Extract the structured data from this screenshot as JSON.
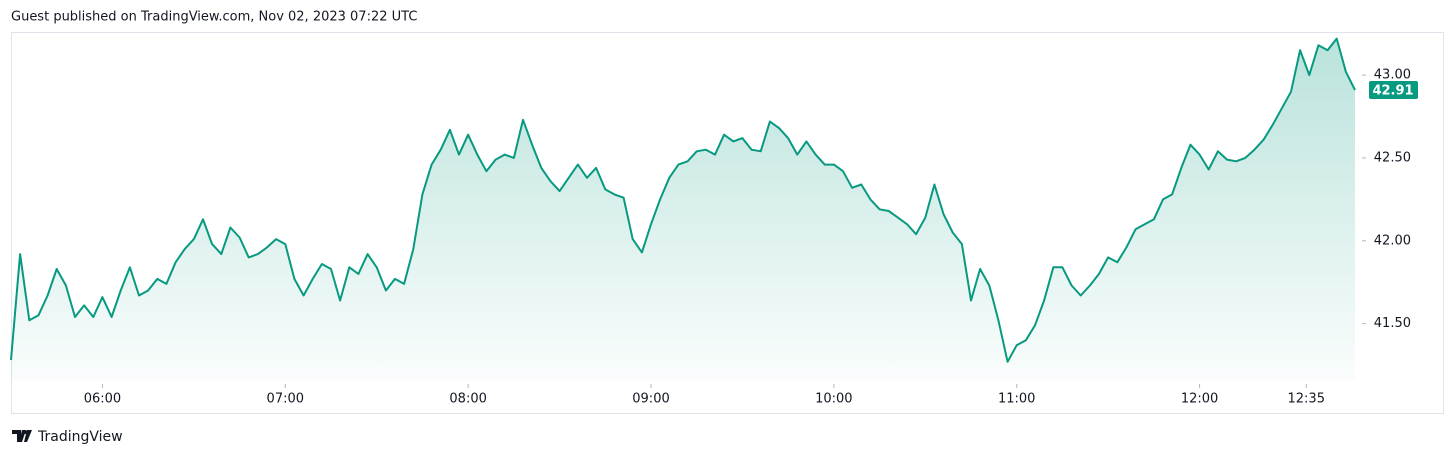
{
  "chart_data": {
    "type": "area",
    "source": "Guest published on TradingView.com, Nov 02, 2023 07:22 UTC",
    "brand": "TradingView",
    "color": "#089981",
    "x": [
      "05:30",
      "05:33",
      "05:36",
      "05:39",
      "05:42",
      "05:45",
      "05:48",
      "05:51",
      "05:54",
      "05:57",
      "06:00",
      "06:03",
      "06:06",
      "06:09",
      "06:12",
      "06:15",
      "06:18",
      "06:21",
      "06:24",
      "06:27",
      "06:30",
      "06:33",
      "06:36",
      "06:39",
      "06:42",
      "06:45",
      "06:48",
      "06:51",
      "06:54",
      "06:57",
      "07:00",
      "07:03",
      "07:06",
      "07:09",
      "07:12",
      "07:15",
      "07:18",
      "07:21",
      "07:24",
      "07:27",
      "07:30",
      "07:33",
      "07:36",
      "07:39",
      "07:42",
      "07:45",
      "07:48",
      "07:51",
      "07:54",
      "07:57",
      "08:00",
      "08:03",
      "08:06",
      "08:09",
      "08:12",
      "08:15",
      "08:18",
      "08:21",
      "08:24",
      "08:27",
      "08:30",
      "08:33",
      "08:36",
      "08:39",
      "08:42",
      "08:45",
      "08:48",
      "08:51",
      "08:54",
      "08:57",
      "09:00",
      "09:03",
      "09:06",
      "09:09",
      "09:12",
      "09:15",
      "09:18",
      "09:21",
      "09:24",
      "09:27",
      "09:30",
      "09:33",
      "09:36",
      "09:39",
      "09:42",
      "09:45",
      "09:48",
      "09:51",
      "09:54",
      "09:57",
      "10:00",
      "10:03",
      "10:06",
      "10:09",
      "10:12",
      "10:15",
      "10:18",
      "10:21",
      "10:24",
      "10:27",
      "10:30",
      "10:33",
      "10:36",
      "10:39",
      "10:42",
      "10:45",
      "10:48",
      "10:51",
      "10:54",
      "10:57",
      "11:00",
      "11:03",
      "11:06",
      "11:09",
      "11:12",
      "11:15",
      "11:18",
      "11:21",
      "11:24",
      "11:27",
      "11:30",
      "11:33",
      "11:36",
      "11:39",
      "11:42",
      "11:45",
      "11:48",
      "11:51",
      "11:54",
      "11:57",
      "12:00",
      "12:03",
      "12:06",
      "12:09",
      "12:12",
      "12:15",
      "12:18",
      "12:21",
      "12:24",
      "12:27",
      "12:30",
      "12:33",
      "12:36",
      "12:39",
      "12:42",
      "12:45",
      "12:48",
      "12:51"
    ],
    "values": [
      41.28,
      41.92,
      41.52,
      41.55,
      41.67,
      41.83,
      41.73,
      41.54,
      41.61,
      41.54,
      41.66,
      41.54,
      41.7,
      41.84,
      41.67,
      41.7,
      41.77,
      41.74,
      41.87,
      41.95,
      42.01,
      42.13,
      41.98,
      41.92,
      42.08,
      42.02,
      41.9,
      41.92,
      41.96,
      42.01,
      41.98,
      41.77,
      41.67,
      41.77,
      41.86,
      41.83,
      41.64,
      41.84,
      41.8,
      41.92,
      41.84,
      41.7,
      41.77,
      41.74,
      41.95,
      42.28,
      42.46,
      42.55,
      42.67,
      42.52,
      42.64,
      42.52,
      42.42,
      42.49,
      42.52,
      42.5,
      42.73,
      42.58,
      42.44,
      42.36,
      42.3,
      42.38,
      42.46,
      42.38,
      42.44,
      42.31,
      42.28,
      42.26,
      42.01,
      41.93,
      42.1,
      42.25,
      42.38,
      42.46,
      42.48,
      42.54,
      42.55,
      42.52,
      42.64,
      42.6,
      42.62,
      42.55,
      42.54,
      42.72,
      42.68,
      42.62,
      42.52,
      42.6,
      42.52,
      42.46,
      42.46,
      42.42,
      42.32,
      42.34,
      42.25,
      42.19,
      42.18,
      42.14,
      42.1,
      42.04,
      42.14,
      42.34,
      42.16,
      42.05,
      41.98,
      41.64,
      41.83,
      41.73,
      41.52,
      41.27,
      41.37,
      41.4,
      41.49,
      41.64,
      41.84,
      41.84,
      41.73,
      41.67,
      41.73,
      41.8,
      41.9,
      41.87,
      41.96,
      42.07,
      42.1,
      42.13,
      42.25,
      42.28,
      42.44,
      42.58,
      42.52,
      42.43,
      42.54,
      42.49,
      42.48,
      42.5,
      42.55,
      42.61,
      42.7,
      42.8,
      42.9,
      43.15,
      43.0,
      43.18,
      43.15,
      43.22,
      43.02,
      42.91
    ],
    "last_price": 42.91,
    "xlim": [
      "05:30",
      "12:51"
    ],
    "xticks": [
      "06:00",
      "07:00",
      "08:00",
      "09:00",
      "10:00",
      "11:00",
      "12:00",
      "12:35"
    ],
    "ylim": [
      41.16,
      43.26
    ],
    "yticks": [
      {
        "value": 41.5,
        "label": "41.50"
      },
      {
        "value": 42,
        "label": "42.00"
      },
      {
        "value": 42.5,
        "label": "42.50"
      },
      {
        "value": 43,
        "label": "43.00"
      }
    ]
  }
}
